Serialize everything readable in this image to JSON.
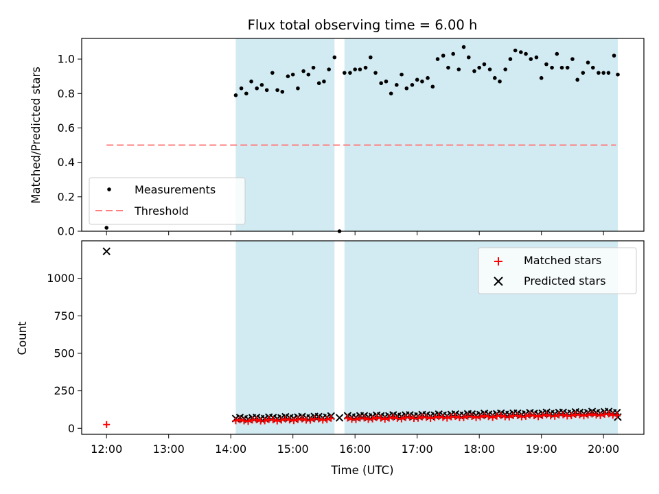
{
  "chart_data": [
    {
      "type": "scatter",
      "panel": "top",
      "title": "Flux total observing time = 6.00 h",
      "xlabel": "",
      "ylabel": "Matched/Predicted stars",
      "xlim": [
        11.6,
        20.65
      ],
      "ylim": [
        0.0,
        1.12
      ],
      "yticks": [
        0.0,
        0.2,
        0.4,
        0.6,
        0.8,
        1.0
      ],
      "ytick_labels": [
        "0.0",
        "0.2",
        "0.4",
        "0.6",
        "0.8",
        "1.0"
      ],
      "grid": false,
      "legend": "lower-left",
      "shaded_intervals": [
        [
          14.08,
          15.67
        ],
        [
          15.83,
          20.23
        ]
      ],
      "shade_color": "#add8e6",
      "threshold": {
        "name": "Threshold",
        "y": 0.5,
        "x": [
          12.0,
          20.2
        ],
        "color": "#ff7f7f"
      },
      "series": [
        {
          "name": "Measurements",
          "color": "#000000",
          "points": [
            [
              12.0,
              0.02
            ],
            [
              15.75,
              0.0
            ],
            [
              14.08,
              0.79
            ],
            [
              14.17,
              0.83
            ],
            [
              14.25,
              0.8
            ],
            [
              14.33,
              0.87
            ],
            [
              14.42,
              0.83
            ],
            [
              14.5,
              0.85
            ],
            [
              14.58,
              0.82
            ],
            [
              14.67,
              0.92
            ],
            [
              14.75,
              0.82
            ],
            [
              14.83,
              0.81
            ],
            [
              14.92,
              0.9
            ],
            [
              15.0,
              0.91
            ],
            [
              15.08,
              0.83
            ],
            [
              15.17,
              0.93
            ],
            [
              15.25,
              0.91
            ],
            [
              15.33,
              0.95
            ],
            [
              15.42,
              0.86
            ],
            [
              15.5,
              0.87
            ],
            [
              15.58,
              0.94
            ],
            [
              15.67,
              1.01
            ],
            [
              15.83,
              0.92
            ],
            [
              15.92,
              0.92
            ],
            [
              16.0,
              0.94
            ],
            [
              16.08,
              0.94
            ],
            [
              16.17,
              0.95
            ],
            [
              16.25,
              1.01
            ],
            [
              16.33,
              0.92
            ],
            [
              16.42,
              0.86
            ],
            [
              16.5,
              0.87
            ],
            [
              16.58,
              0.8
            ],
            [
              16.67,
              0.85
            ],
            [
              16.75,
              0.91
            ],
            [
              16.83,
              0.83
            ],
            [
              16.92,
              0.85
            ],
            [
              17.0,
              0.88
            ],
            [
              17.08,
              0.87
            ],
            [
              17.17,
              0.89
            ],
            [
              17.25,
              0.84
            ],
            [
              17.33,
              1.0
            ],
            [
              17.42,
              1.02
            ],
            [
              17.5,
              0.95
            ],
            [
              17.58,
              1.03
            ],
            [
              17.67,
              0.94
            ],
            [
              17.75,
              1.07
            ],
            [
              17.83,
              1.01
            ],
            [
              17.92,
              0.93
            ],
            [
              18.0,
              0.95
            ],
            [
              18.08,
              0.97
            ],
            [
              18.17,
              0.94
            ],
            [
              18.25,
              0.89
            ],
            [
              18.33,
              0.87
            ],
            [
              18.42,
              0.94
            ],
            [
              18.5,
              1.0
            ],
            [
              18.58,
              1.05
            ],
            [
              18.67,
              1.04
            ],
            [
              18.75,
              1.03
            ],
            [
              18.83,
              1.0
            ],
            [
              18.92,
              1.01
            ],
            [
              19.0,
              0.89
            ],
            [
              19.08,
              0.97
            ],
            [
              19.17,
              0.95
            ],
            [
              19.25,
              1.03
            ],
            [
              19.33,
              0.95
            ],
            [
              19.42,
              0.95
            ],
            [
              19.5,
              1.0
            ],
            [
              19.58,
              0.88
            ],
            [
              19.67,
              0.92
            ],
            [
              19.75,
              0.98
            ],
            [
              19.83,
              0.95
            ],
            [
              19.92,
              0.92
            ],
            [
              20.0,
              0.92
            ],
            [
              20.08,
              0.92
            ],
            [
              20.17,
              1.02
            ],
            [
              20.23,
              0.91
            ]
          ]
        }
      ]
    },
    {
      "type": "scatter",
      "panel": "bottom",
      "title": "",
      "xlabel": "Time (UTC)",
      "ylabel": "Count",
      "xlim": [
        11.6,
        20.65
      ],
      "ylim": [
        -40,
        1250
      ],
      "yticks": [
        0,
        250,
        500,
        750,
        1000
      ],
      "ytick_labels": [
        "0",
        "250",
        "500",
        "750",
        "1000"
      ],
      "xticks": [
        12,
        13,
        14,
        15,
        16,
        17,
        18,
        19,
        20
      ],
      "xtick_labels": [
        "12:00",
        "13:00",
        "14:00",
        "15:00",
        "16:00",
        "17:00",
        "18:00",
        "19:00",
        "20:00"
      ],
      "grid": false,
      "legend": "upper-right",
      "shaded_intervals": [
        [
          14.08,
          15.67
        ],
        [
          15.83,
          20.23
        ]
      ],
      "shade_color": "#add8e6",
      "series": [
        {
          "name": "Matched stars",
          "marker": "+",
          "color": "#ff0000",
          "points": [
            [
              12.0,
              25
            ]
          ],
          "generated": {
            "x_start": 14.08,
            "x_end": 20.23,
            "step": 0.0667,
            "y_start": 50,
            "y_end": 92,
            "gap": [
              15.67,
              15.83
            ]
          }
        },
        {
          "name": "Predicted stars",
          "marker": "x",
          "color": "#000000",
          "points": [
            [
              12.0,
              1180
            ],
            [
              15.75,
              70
            ],
            [
              20.23,
              75
            ]
          ],
          "generated": {
            "x_start": 14.08,
            "x_end": 20.23,
            "step": 0.0667,
            "y_start": 65,
            "y_end": 108,
            "gap": [
              15.67,
              15.83
            ]
          }
        }
      ]
    }
  ]
}
